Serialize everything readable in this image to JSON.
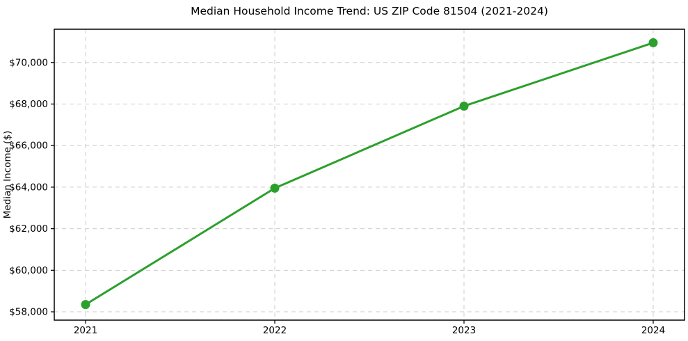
{
  "figure": {
    "title": "Median Household Income Trend: US ZIP Code 81504 (2021-2024)"
  },
  "chart_data": {
    "type": "line",
    "title": "Median Household Income Trend: US ZIP Code 81504 (2021-2024)",
    "xlabel": "",
    "ylabel": "Median Income ($)",
    "x": [
      2021,
      2022,
      2023,
      2024
    ],
    "x_labels": [
      "2021",
      "2022",
      "2023",
      "2024"
    ],
    "series": [
      {
        "name": "Median Household Income",
        "values": [
          58350,
          63950,
          67900,
          70950
        ],
        "color": "#2ca02c",
        "marker": "circle"
      }
    ],
    "ylim": [
      57600,
      71600
    ],
    "yticks": [
      58000,
      60000,
      62000,
      64000,
      66000,
      68000,
      70000
    ],
    "ytick_labels": [
      "$58,000",
      "$60,000",
      "$62,000",
      "$64,000",
      "$66,000",
      "$68,000",
      "$70,000"
    ],
    "grid": true,
    "grid_style": "dashed",
    "grid_color": "#cccccc",
    "axis_color": "#000000",
    "background": "#ffffff",
    "legend": "none"
  }
}
